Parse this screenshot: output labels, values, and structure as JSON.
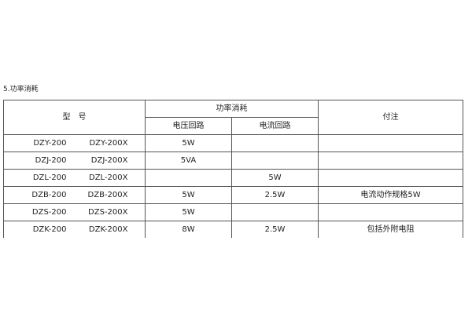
{
  "section_title": "5.功率消耗",
  "table": {
    "headers": {
      "model": "型　号",
      "power": "功率消耗",
      "voltage_circuit": "电压回路",
      "current_circuit": "电流回路",
      "notes": "付注"
    },
    "rows": [
      {
        "model_a": "DZY-200",
        "model_b": "DZY-200X",
        "voltage": "5W",
        "current": "",
        "note": ""
      },
      {
        "model_a": "DZJ-200",
        "model_b": "DZJ-200X",
        "voltage": "5VA",
        "current": "",
        "note": ""
      },
      {
        "model_a": "DZL-200",
        "model_b": "DZL-200X",
        "voltage": "",
        "current": "5W",
        "note": ""
      },
      {
        "model_a": "DZB-200",
        "model_b": "DZB-200X",
        "voltage": "5W",
        "current": "2.5W",
        "note": "电流动作规格5W"
      },
      {
        "model_a": "DZS-200",
        "model_b": "DZS-200X",
        "voltage": "5W",
        "current": "",
        "note": ""
      },
      {
        "model_a": "DZK-200",
        "model_b": "DZK-200X",
        "voltage": "8W",
        "current": "2.5W",
        "note": "包括外附电阻"
      }
    ]
  }
}
